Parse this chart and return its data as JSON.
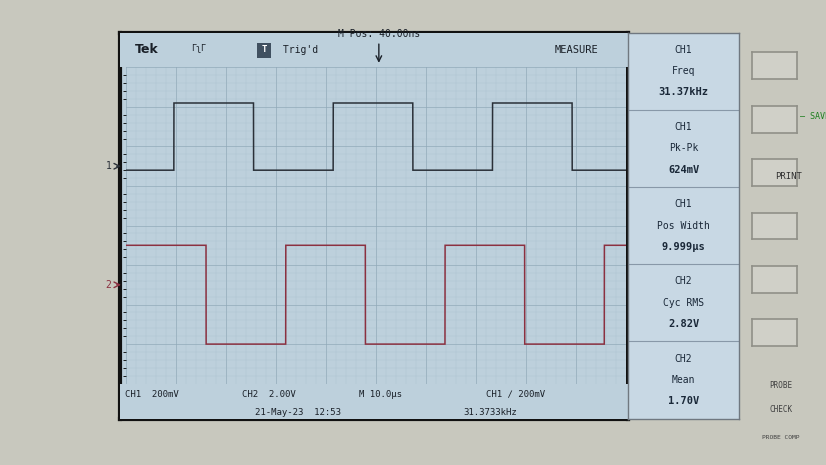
{
  "screen_bg": "#bdd0dc",
  "outer_bg": "#c8c8be",
  "grid_color": "#90a8b8",
  "grid_minor_color": "#a0b8c8",
  "ch1_color": "#2a3038",
  "ch2_color": "#8b3040",
  "header_text_color": "#1a2028",
  "measure_bg": "#c8d8e4",
  "measure_text_color": "#1a2838",
  "measure_divider": "#8898a8",
  "footer": {
    "ch1_label": "CH1  200mV",
    "ch2_label": "CH2  2.00V",
    "time_label": "M 10.0μs",
    "trig_label": "CH1 ∕ 200mV",
    "date_label": "21-May-23  12:53",
    "freq_label": "31.3733kHz"
  },
  "measurements": [
    {
      "label": "CH1",
      "line2": "Freq",
      "value": "31.37kHz"
    },
    {
      "label": "CH1",
      "line2": "Pk-Pk",
      "value": "624mV"
    },
    {
      "label": "CH1",
      "line2": "Pos Width",
      "value": "9.999μs"
    },
    {
      "label": "CH2",
      "line2": "Cyc RMS",
      "value": "2.82V"
    },
    {
      "label": "CH2",
      "line2": "Mean",
      "value": "1.70V"
    }
  ],
  "time_div_us": 10.0,
  "num_hdivs": 10,
  "num_vdivs": 8,
  "freq_khz": 31.37,
  "ch1_ref_div": 1.5,
  "ch2_ref_div": -1.5,
  "ch1_high": 3.1,
  "ch1_low": 1.4,
  "ch2_high": -0.5,
  "ch2_low": -3.0,
  "ch1_phase_us": 9.5,
  "ch2_phase_us": 0.0
}
